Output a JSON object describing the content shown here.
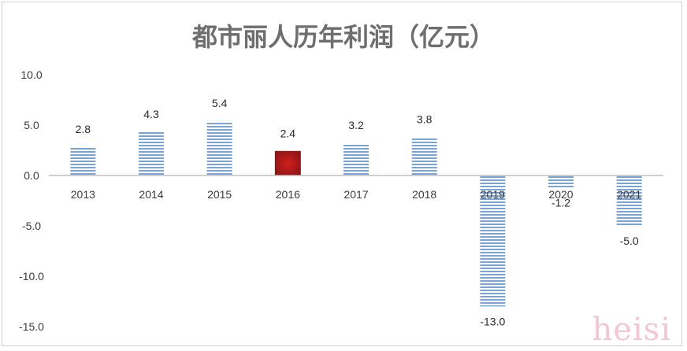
{
  "chart_data": {
    "type": "bar",
    "title": "都市丽人历年利润（亿元）",
    "categories": [
      "2013",
      "2014",
      "2015",
      "2016",
      "2017",
      "2018",
      "2019",
      "2020",
      "2021"
    ],
    "values": [
      2.8,
      4.3,
      5.4,
      2.4,
      3.2,
      3.8,
      -13.0,
      -1.2,
      -5.0
    ],
    "data_labels": [
      "2.8",
      "4.3",
      "5.4",
      "2.4",
      "3.2",
      "3.8",
      "-13.0",
      "-1.2",
      "-5.0"
    ],
    "highlight_category": "2016",
    "ylim": [
      -15,
      10
    ],
    "yticks": [
      10,
      5,
      0,
      -5,
      -10,
      -15
    ],
    "ytick_labels": [
      "10.0",
      "5.0",
      "0.0",
      "-5.0",
      "-10.0",
      "-15.0"
    ],
    "xlabel": "",
    "ylabel": "",
    "grid": false,
    "legend": "none",
    "colors": {
      "bar_stripe": "#7aa3d6",
      "bar_background": "#ffffff",
      "highlight_dark": "#8e1515",
      "highlight_light": "#d21e1e",
      "axis": "#bfbfbf",
      "title": "#6e6e6e"
    }
  },
  "watermark": "heisi"
}
